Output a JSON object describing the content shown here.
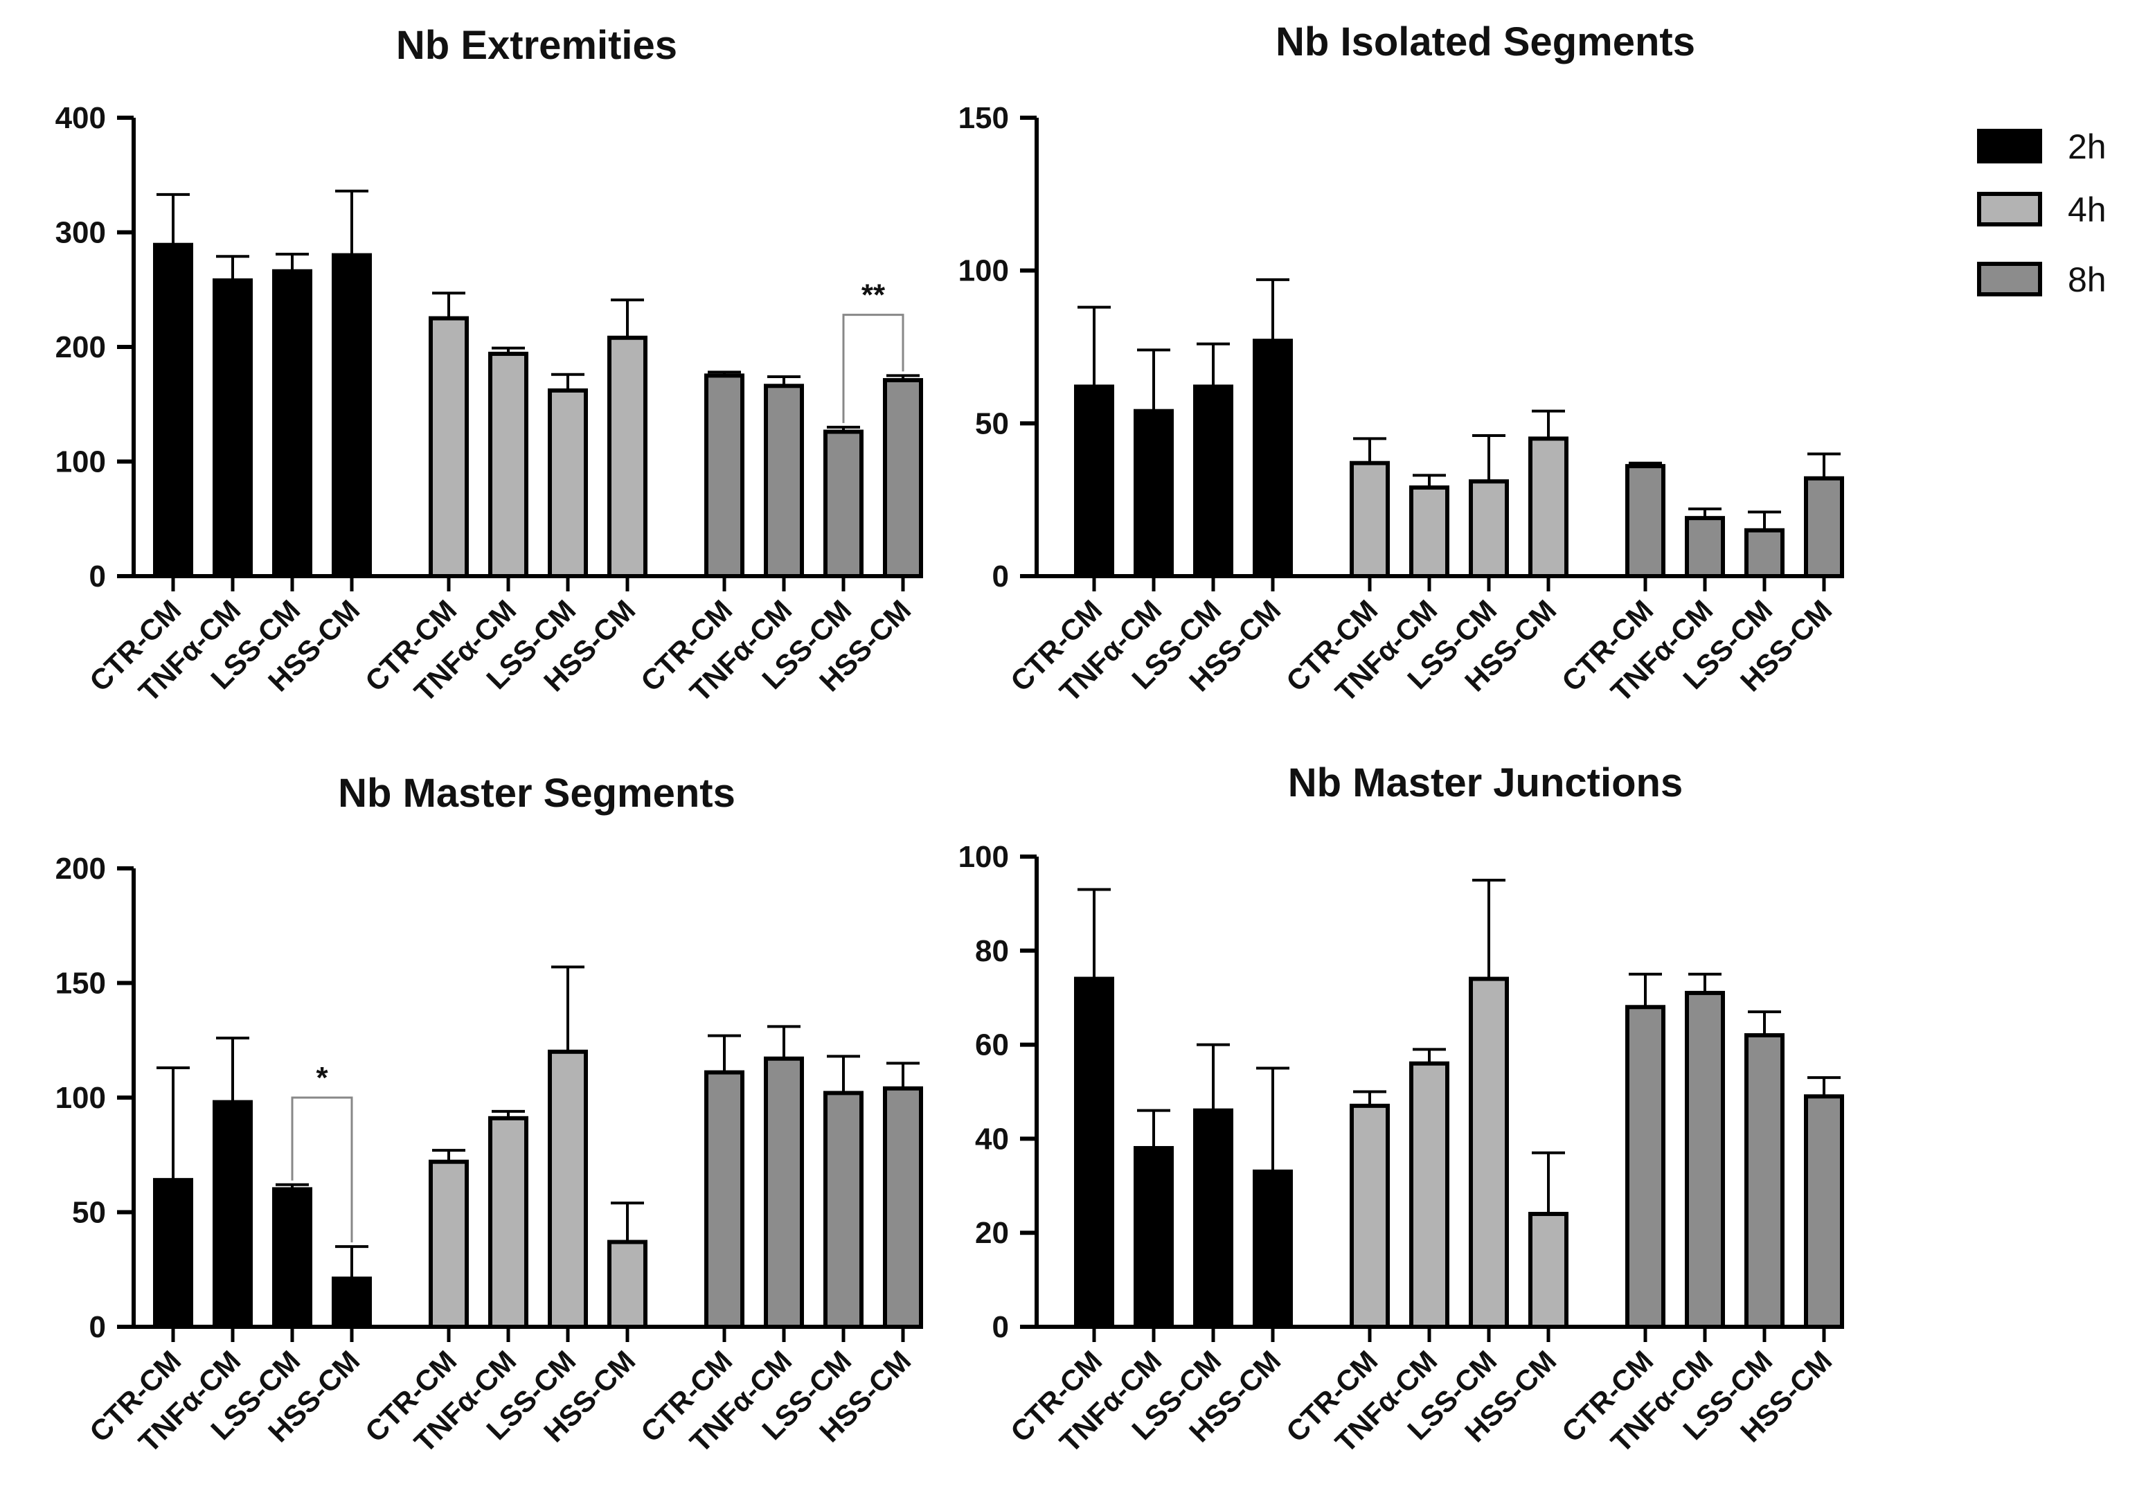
{
  "colors": {
    "2h": "#000000",
    "4h": "#b3b3b3",
    "8h": "#8c8c8c",
    "edge": "#000000",
    "bracket": "#888888"
  },
  "legend": {
    "items": [
      {
        "label": "2h",
        "color": "#000000"
      },
      {
        "label": "4h",
        "color": "#b3b3b3"
      },
      {
        "label": "8h",
        "color": "#8c8c8c"
      }
    ]
  },
  "chart_data": [
    {
      "type": "bar",
      "title": "Nb Extremities",
      "ylim": [
        0,
        400
      ],
      "yticks": [
        0,
        100,
        200,
        300,
        400
      ],
      "groups": [
        "2h",
        "4h",
        "8h"
      ],
      "categories": [
        "CTR-CM",
        "TNFα-CM",
        "LSS-CM",
        "HSS-CM"
      ],
      "series": [
        {
          "name": "2h",
          "values": [
            289,
            258,
            266,
            280
          ],
          "errors": [
            44,
            21,
            15,
            56
          ]
        },
        {
          "name": "4h",
          "values": [
            225,
            194,
            162,
            208
          ],
          "errors": [
            22,
            5,
            14,
            33
          ]
        },
        {
          "name": "8h",
          "values": [
            175,
            166,
            126,
            171
          ],
          "errors": [
            3,
            8,
            4,
            4
          ]
        }
      ],
      "significance": [
        {
          "group": 2,
          "from": 2,
          "to": 3,
          "label": "**",
          "top": 228
        }
      ]
    },
    {
      "type": "bar",
      "title": "Nb Isolated Segments",
      "ylim": [
        0,
        150
      ],
      "yticks": [
        0,
        50,
        100,
        150
      ],
      "groups": [
        "2h",
        "4h",
        "8h"
      ],
      "categories": [
        "CTR-CM",
        "TNFα-CM",
        "LSS-CM",
        "HSS-CM"
      ],
      "series": [
        {
          "name": "2h",
          "values": [
            62,
            54,
            62,
            77
          ],
          "errors": [
            26,
            20,
            14,
            20
          ]
        },
        {
          "name": "4h",
          "values": [
            37,
            29,
            31,
            45
          ],
          "errors": [
            8,
            4,
            15,
            9
          ]
        },
        {
          "name": "8h",
          "values": [
            36,
            19,
            15,
            32
          ],
          "errors": [
            1,
            3,
            6,
            8
          ]
        }
      ],
      "significance": []
    },
    {
      "type": "bar",
      "title": "Nb Master Segments",
      "ylim": [
        0,
        200
      ],
      "yticks": [
        0,
        50,
        100,
        150,
        200
      ],
      "groups": [
        "2h",
        "4h",
        "8h"
      ],
      "categories": [
        "CTR-CM",
        "TNFα-CM",
        "LSS-CM",
        "HSS-CM"
      ],
      "series": [
        {
          "name": "2h",
          "values": [
            64,
            98,
            60,
            21
          ],
          "errors": [
            49,
            28,
            2,
            14
          ]
        },
        {
          "name": "4h",
          "values": [
            72,
            91,
            120,
            37
          ],
          "errors": [
            5,
            3,
            37,
            17
          ]
        },
        {
          "name": "8h",
          "values": [
            111,
            117,
            102,
            104
          ],
          "errors": [
            16,
            14,
            16,
            11
          ]
        }
      ],
      "significance": [
        {
          "group": 0,
          "from": 2,
          "to": 3,
          "label": "*",
          "top": 100
        }
      ]
    },
    {
      "type": "bar",
      "title": "Nb Master Junctions",
      "ylim": [
        0,
        100
      ],
      "yticks": [
        0,
        20,
        40,
        60,
        80,
        100
      ],
      "groups": [
        "2h",
        "4h",
        "8h"
      ],
      "categories": [
        "CTR-CM",
        "TNFα-CM",
        "LSS-CM",
        "HSS-CM"
      ],
      "series": [
        {
          "name": "2h",
          "values": [
            74,
            38,
            46,
            33
          ],
          "errors": [
            19,
            8,
            14,
            22
          ]
        },
        {
          "name": "4h",
          "values": [
            47,
            56,
            74,
            24
          ],
          "errors": [
            3,
            3,
            21,
            13
          ]
        },
        {
          "name": "8h",
          "values": [
            68,
            71,
            62,
            49
          ],
          "errors": [
            7,
            4,
            5,
            4
          ]
        }
      ],
      "significance": []
    }
  ]
}
